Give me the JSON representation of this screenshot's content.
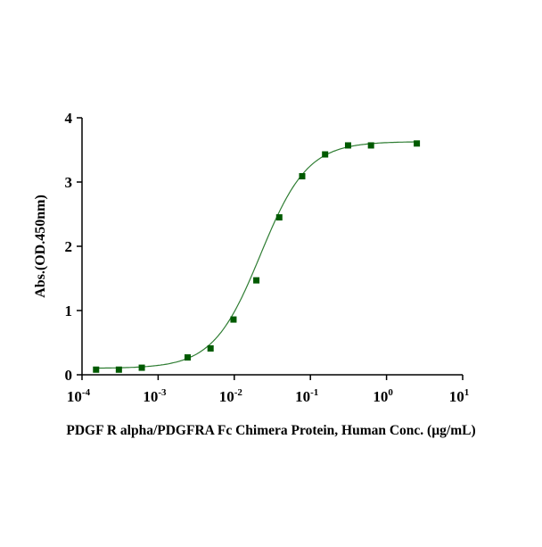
{
  "chart_data": {
    "type": "scatter",
    "title": "",
    "xlabel": "PDGF R alpha/PDGFRA Fc Chimera Protein, Human Conc. (µg/mL)",
    "ylabel": "Abs.(OD.450nm)",
    "xscale": "log",
    "xlim": [
      0.0001,
      10
    ],
    "ylim": [
      0,
      4
    ],
    "x_ticks": [
      {
        "base": "10",
        "exp": "-4"
      },
      {
        "base": "10",
        "exp": "-3"
      },
      {
        "base": "10",
        "exp": "-2"
      },
      {
        "base": "10",
        "exp": "-1"
      },
      {
        "base": "10",
        "exp": "0"
      },
      {
        "base": "10",
        "exp": "1"
      }
    ],
    "y_ticks": [
      "0",
      "1",
      "2",
      "3",
      "4"
    ],
    "grid": false,
    "marker_color": "#005a00",
    "curve_color": "#2e7d32",
    "fit": "sigmoidal curve",
    "series": [
      {
        "x": [
          0.000153,
          0.000305,
          0.00061,
          0.00244,
          0.00488,
          0.00977,
          0.0195,
          0.039,
          0.078,
          0.156,
          0.3125,
          0.625,
          2.5
        ],
        "y": [
          0.08,
          0.08,
          0.11,
          0.27,
          0.41,
          0.86,
          1.47,
          2.45,
          3.09,
          3.43,
          3.57,
          3.57,
          3.6
        ]
      }
    ]
  }
}
